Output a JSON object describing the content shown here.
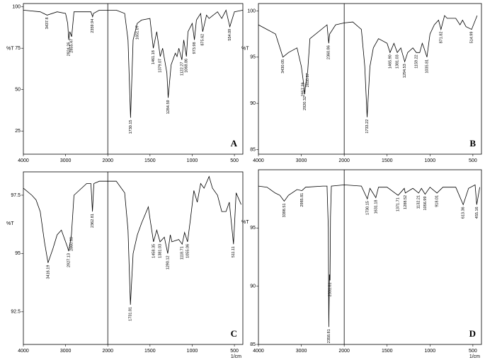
{
  "chart_data": [
    {
      "type": "line",
      "panel": "A",
      "ylabel": "%T",
      "color": "#000000",
      "xlim": [
        4000,
        400
      ],
      "ylim": [
        11,
        102
      ],
      "divider": 2000,
      "xticks": [
        4000,
        3000,
        2000,
        1500,
        1000,
        500
      ],
      "yticks": [
        25,
        50,
        75,
        100
      ],
      "x": [
        4000,
        3600,
        3437.8,
        3200,
        3000,
        2950,
        2924.26,
        2900,
        2855.47,
        2800,
        2400,
        2359.94,
        2340,
        2200,
        2000,
        1900,
        1800,
        1760,
        1730.15,
        1700,
        1651.07,
        1600,
        1500,
        1461.18,
        1420,
        1379.07,
        1350,
        1300,
        1284.59,
        1250,
        1200,
        1180,
        1158,
        1122.27,
        1100,
        1068.86,
        1050,
        1000,
        973.98,
        950,
        900,
        875.62,
        830,
        800,
        700,
        650,
        600,
        554.09,
        500,
        400
      ],
      "values": [
        98,
        97,
        95,
        97,
        96,
        90,
        80,
        85,
        82,
        97,
        97,
        94,
        96,
        98,
        98,
        98,
        96,
        80,
        33,
        80,
        90,
        92,
        93,
        75,
        85,
        70,
        75,
        60,
        45,
        65,
        72,
        70,
        75,
        68,
        80,
        70,
        85,
        90,
        80,
        92,
        96,
        85,
        95,
        93,
        97,
        93,
        98,
        88,
        97,
        98
      ],
      "annotations": [
        {
          "x": 3437.8,
          "y": 95,
          "label": "3437.8"
        },
        {
          "x": 2924.26,
          "y": 80,
          "label": "2924.26"
        },
        {
          "x": 2855.47,
          "y": 82,
          "label": "2855.47"
        },
        {
          "x": 2359.94,
          "y": 94,
          "label": "2359.94"
        },
        {
          "x": 1730.15,
          "y": 33,
          "label": "1730.15"
        },
        {
          "x": 1651.07,
          "y": 90,
          "label": "1651.07"
        },
        {
          "x": 1461.18,
          "y": 75,
          "label": "1461.18"
        },
        {
          "x": 1379.07,
          "y": 70,
          "label": "1379.07"
        },
        {
          "x": 1284.59,
          "y": 45,
          "label": "1284.59"
        },
        {
          "x": 1122.27,
          "y": 68,
          "label": "1122.27"
        },
        {
          "x": 1068.86,
          "y": 70,
          "label": "1068.86"
        },
        {
          "x": 973.98,
          "y": 80,
          "label": "973.98"
        },
        {
          "x": 875.62,
          "y": 85,
          "label": "875.62"
        },
        {
          "x": 554.09,
          "y": 88,
          "label": "554.09"
        }
      ]
    },
    {
      "type": "line",
      "panel": "B",
      "ylabel": "%T",
      "color": "#000000",
      "xlim": [
        4000,
        400
      ],
      "ylim": [
        84.5,
        100.8
      ],
      "divider": 2000,
      "xticks": [
        4000,
        3000,
        2000,
        1500,
        1000,
        500
      ],
      "yticks": [
        85,
        90,
        95,
        100
      ],
      "x": [
        4000,
        3800,
        3600,
        3430.05,
        3300,
        3100,
        3000,
        2957.29,
        2920.32,
        2900,
        2850.87,
        2800,
        2400,
        2360.86,
        2340,
        2200,
        2000,
        1900,
        1800,
        1760,
        1733.22,
        1700,
        1660,
        1600,
        1500,
        1465.9,
        1420,
        1381.03,
        1340,
        1294.53,
        1260,
        1200,
        1159.22,
        1120,
        1090,
        1070,
        1035.81,
        1000,
        950,
        900,
        871.82,
        830,
        800,
        700,
        650,
        620,
        580,
        514.99,
        450
      ],
      "values": [
        98.5,
        98,
        97.5,
        95,
        95.5,
        96,
        94,
        92.5,
        91,
        92,
        93.5,
        97,
        98.5,
        96.5,
        97.5,
        98.5,
        98.7,
        98.8,
        98,
        94,
        88.5,
        94,
        96,
        97,
        96.5,
        95.5,
        96.5,
        95.5,
        96,
        94.5,
        95.5,
        96,
        95.5,
        95.5,
        96.5,
        96,
        95,
        97.5,
        98.5,
        99,
        98,
        99.5,
        99.2,
        99.2,
        98.5,
        99,
        98.3,
        98,
        99.5
      ],
      "annotations": [
        {
          "x": 3430.05,
          "y": 95,
          "label": "3430.05"
        },
        {
          "x": 2957.29,
          "y": 92.5,
          "label": "2957.29"
        },
        {
          "x": 2920.32,
          "y": 91,
          "label": "2920.32"
        },
        {
          "x": 2850.87,
          "y": 93.5,
          "label": "2850.87"
        },
        {
          "x": 2360.86,
          "y": 96.5,
          "label": "2360.86"
        },
        {
          "x": 1733.22,
          "y": 88.5,
          "label": "1733.22"
        },
        {
          "x": 1465.9,
          "y": 95.5,
          "label": "1465.90"
        },
        {
          "x": 1381.03,
          "y": 95.5,
          "label": "1381.03"
        },
        {
          "x": 1294.53,
          "y": 94.5,
          "label": "1294.53"
        },
        {
          "x": 1159.22,
          "y": 95.5,
          "label": "1159.22"
        },
        {
          "x": 1035.81,
          "y": 95,
          "label": "1035.81"
        },
        {
          "x": 871.82,
          "y": 98,
          "label": "871.82"
        },
        {
          "x": 514.99,
          "y": 98,
          "label": "514.99"
        }
      ]
    },
    {
      "type": "line",
      "panel": "C",
      "ylabel": "%T",
      "xlabel": "1/cm",
      "color": "#000000",
      "xlim": [
        4000,
        400
      ],
      "ylim": [
        91.1,
        98.5
      ],
      "divider": 2000,
      "xticks": [
        4000,
        3000,
        2000,
        1500,
        1000,
        500
      ],
      "yticks": [
        92.5,
        95,
        97.5
      ],
      "x": [
        4000,
        3800,
        3700,
        3600,
        3500,
        3416.19,
        3300,
        3200,
        3100,
        2960,
        2927.13,
        2860.68,
        2800,
        2500,
        2400,
        2362.81,
        2330,
        2200,
        2000,
        1900,
        1800,
        1760,
        1731.81,
        1700,
        1650,
        1600,
        1520,
        1500,
        1458.35,
        1420,
        1381.03,
        1330,
        1290.12,
        1260,
        1240,
        1160,
        1118.71,
        1090,
        1055.06,
        1020,
        980,
        940,
        900,
        860,
        800,
        760,
        700,
        650,
        600,
        560,
        511.11,
        480,
        420
      ],
      "values": [
        97.8,
        97.5,
        97.3,
        96.8,
        95.5,
        94.6,
        95.2,
        95.8,
        96,
        95.3,
        95.1,
        95.8,
        97.5,
        98,
        98,
        96.8,
        98,
        98.1,
        98.1,
        98.1,
        97.6,
        96,
        92.8,
        95,
        95.8,
        96.3,
        97,
        96.5,
        95.5,
        96,
        95.5,
        95.7,
        95,
        95.8,
        95.5,
        95.6,
        95.4,
        95.9,
        95.5,
        96.5,
        97.7,
        97.2,
        98,
        97.8,
        98.3,
        97.8,
        97.5,
        96.8,
        96.8,
        97.2,
        95.4,
        97.6,
        97.1
      ],
      "annotations": [
        {
          "x": 3416.19,
          "y": 94.6,
          "label": "3416.19"
        },
        {
          "x": 2927.13,
          "y": 95.1,
          "label": "2927.13"
        },
        {
          "x": 2860.68,
          "y": 95.8,
          "label": "2860.68"
        },
        {
          "x": 2362.81,
          "y": 96.8,
          "label": "2362.81"
        },
        {
          "x": 1731.81,
          "y": 92.8,
          "label": "1731.81"
        },
        {
          "x": 1458.35,
          "y": 95.5,
          "label": "1458.35"
        },
        {
          "x": 1381.03,
          "y": 95.5,
          "label": "1381.03"
        },
        {
          "x": 1290.12,
          "y": 95,
          "label": "1290.12"
        },
        {
          "x": 1118.71,
          "y": 95.4,
          "label": "1118.71"
        },
        {
          "x": 1055.06,
          "y": 95.5,
          "label": "1055.06"
        },
        {
          "x": 511.11,
          "y": 95.4,
          "label": "511.11"
        }
      ]
    },
    {
      "type": "line",
      "panel": "D",
      "ylabel": "%T",
      "xlabel": "1/cm",
      "color": "#000000",
      "xlim": [
        4000,
        400
      ],
      "ylim": [
        85,
        100
      ],
      "divider": 2000,
      "xticks": [
        4000,
        3000,
        2000,
        1500,
        1000,
        500
      ],
      "yticks": [
        85,
        90,
        95
      ],
      "x": [
        4000,
        3800,
        3609,
        3500,
        3398.51,
        3300,
        3100,
        2985.81,
        2900,
        2500,
        2400,
        2370,
        2358.81,
        2345,
        2331.81,
        2320,
        2300,
        2000,
        1800,
        1730.15,
        1700,
        1631.18,
        1600,
        1500,
        1371.71,
        1300,
        1288.52,
        1200,
        1132.21,
        1100,
        1056.99,
        1000,
        918.01,
        850,
        700,
        613.36,
        550,
        474,
        455.16,
        420
      ],
      "values": [
        98.6,
        98.5,
        98,
        97.8,
        97.3,
        97.8,
        98.3,
        98.2,
        98.5,
        98.6,
        98.6,
        95,
        86.5,
        91,
        90.5,
        96,
        98.6,
        98.7,
        98.6,
        97.5,
        98.4,
        97.6,
        98.5,
        98.5,
        97.8,
        98.4,
        98,
        98.4,
        98,
        98.4,
        97.9,
        98.5,
        98,
        98.5,
        98.5,
        97,
        98.4,
        98.7,
        97,
        98.5
      ],
      "annotations": [
        {
          "x": 3398.51,
          "y": 97.3,
          "label": "3398.51"
        },
        {
          "x": 2985.81,
          "y": 98.2,
          "label": "2985.81"
        },
        {
          "x": 2358.81,
          "y": 86.5,
          "label": "2358.81"
        },
        {
          "x": 2331.81,
          "y": 90.5,
          "label": "2331.81"
        },
        {
          "x": 1730.15,
          "y": 97.5,
          "label": "1730.15"
        },
        {
          "x": 1631.18,
          "y": 97.6,
          "label": "1631.18"
        },
        {
          "x": 1371.71,
          "y": 97.8,
          "label": "1371.71"
        },
        {
          "x": 1288.52,
          "y": 98,
          "label": "1288.52"
        },
        {
          "x": 1132.21,
          "y": 98,
          "label": "1132.21"
        },
        {
          "x": 1056.99,
          "y": 97.9,
          "label": "1056.99"
        },
        {
          "x": 918.01,
          "y": 98,
          "label": "918.01"
        },
        {
          "x": 613.36,
          "y": 97,
          "label": "613.36"
        },
        {
          "x": 455.16,
          "y": 97,
          "label": "455.16"
        }
      ]
    }
  ]
}
